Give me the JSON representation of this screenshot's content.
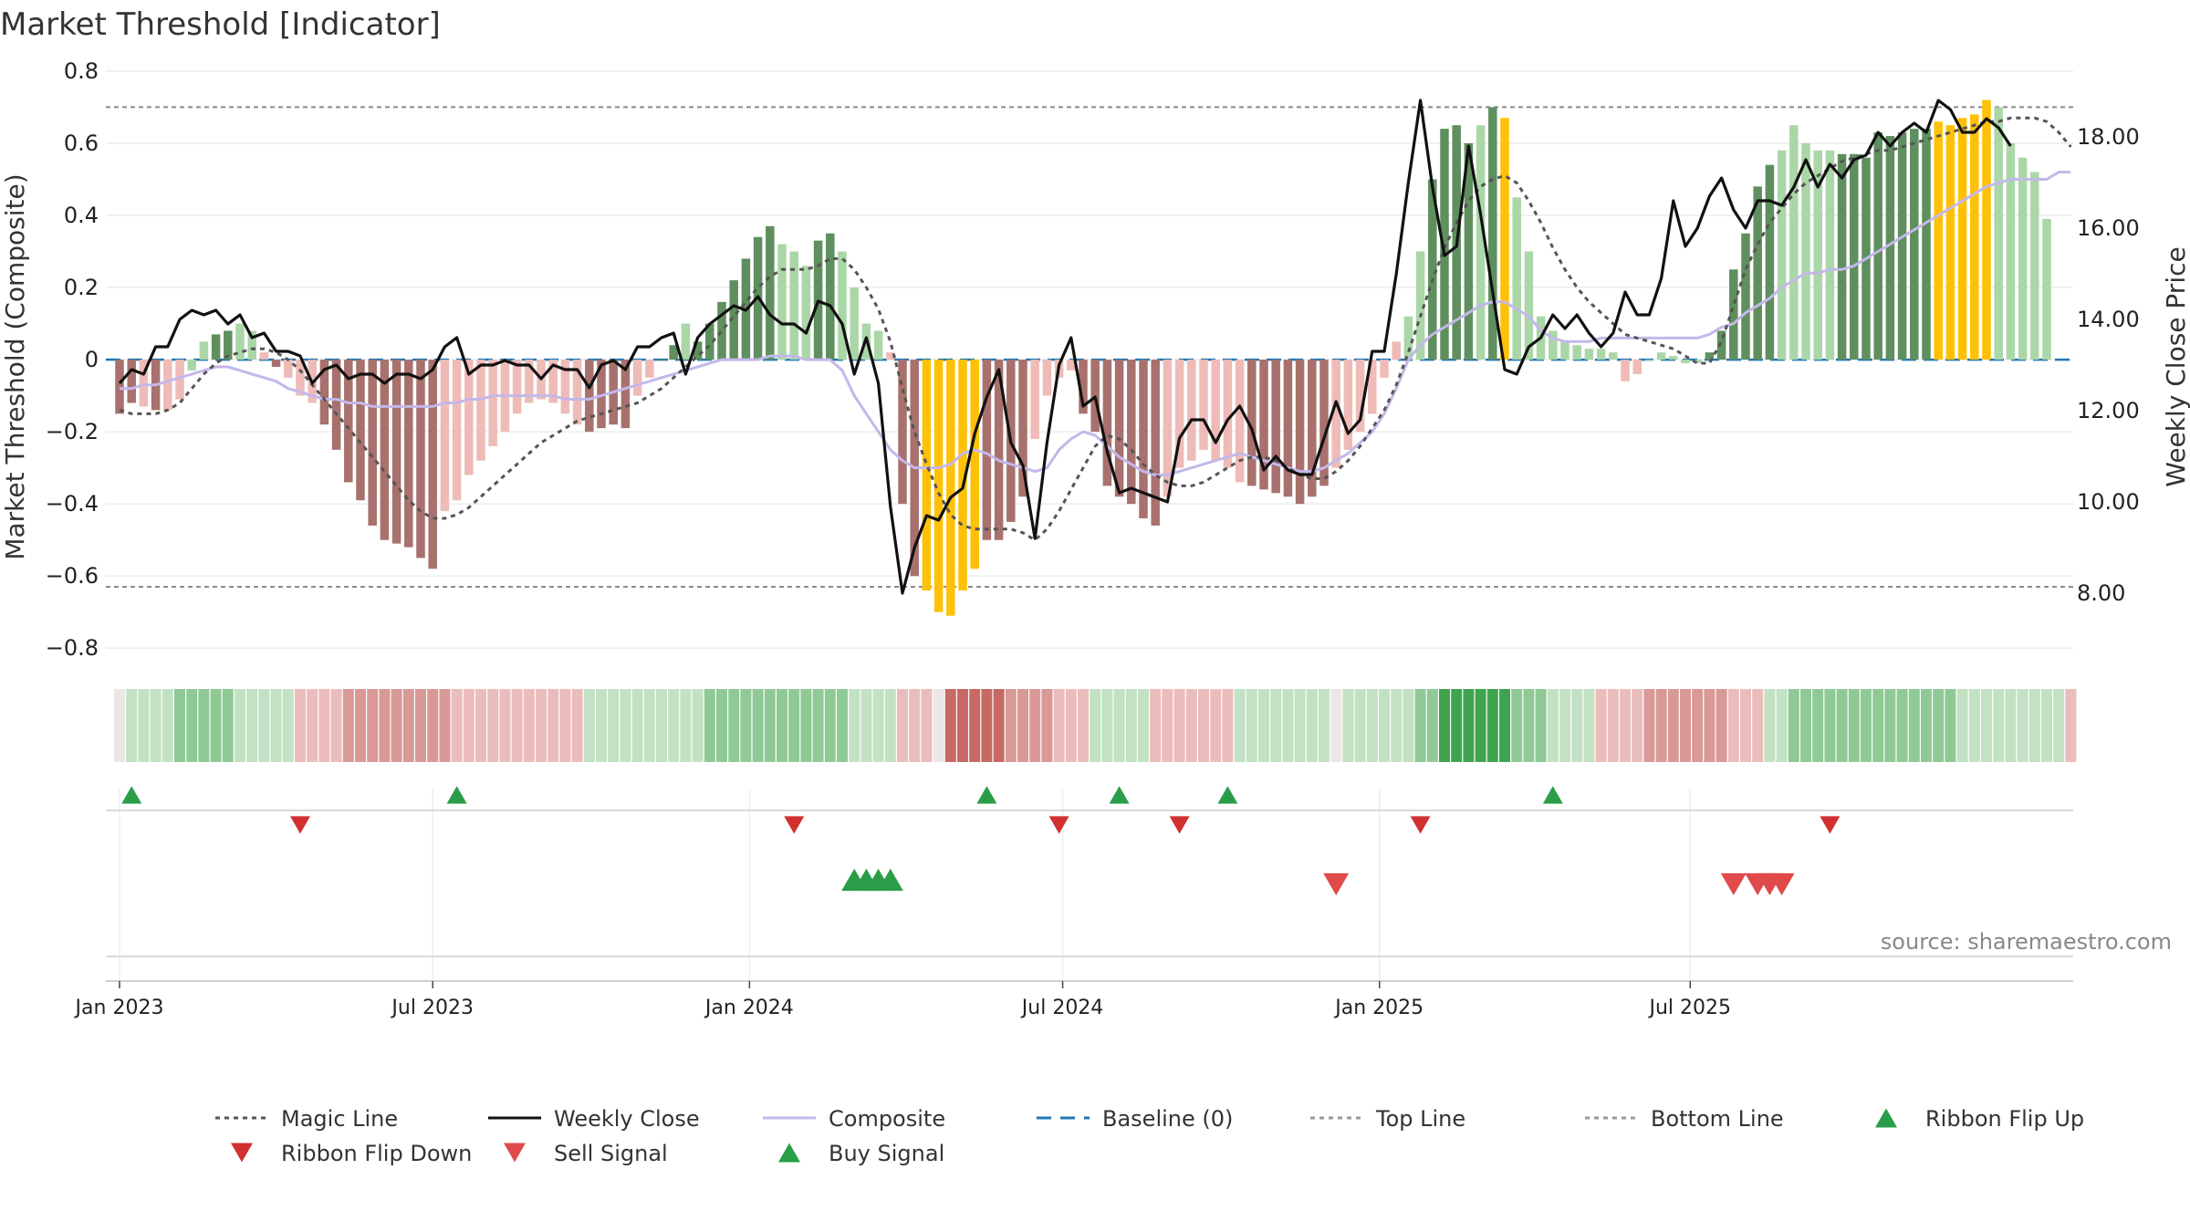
{
  "chart_data": {
    "type": "bar",
    "title": "Market Threshold [Indicator]",
    "ylabel": "Market Threshold (Composite)",
    "y2label": "Weekly Close Price",
    "ylim": [
      -0.85,
      0.82
    ],
    "y2lim": [
      6.4,
      19.6
    ],
    "yticks": [
      {
        "v": 0.8,
        "label": "0.8"
      },
      {
        "v": 0.6,
        "label": "0.6"
      },
      {
        "v": 0.4,
        "label": "0.4"
      },
      {
        "v": 0.2,
        "label": "0.2"
      },
      {
        "v": 0,
        "label": "0"
      },
      {
        "v": -0.2,
        "label": "−0.2"
      },
      {
        "v": -0.4,
        "label": "−0.4"
      },
      {
        "v": -0.6,
        "label": "−0.6"
      },
      {
        "v": -0.8,
        "label": "−0.8"
      }
    ],
    "y2ticks": [
      {
        "v": 18,
        "label": "18.00"
      },
      {
        "v": 16,
        "label": "16.00"
      },
      {
        "v": 14,
        "label": "14.00"
      },
      {
        "v": 12,
        "label": "12.00"
      },
      {
        "v": 10,
        "label": "10.00"
      },
      {
        "v": 8,
        "label": "8.00"
      }
    ],
    "xticks": [
      {
        "week": 0,
        "label": "Jan 2023"
      },
      {
        "week": 26,
        "label": "Jul 2023"
      },
      {
        "week": 52.3,
        "label": "Jan 2024"
      },
      {
        "week": 78.3,
        "label": "Jul 2024"
      },
      {
        "week": 104.6,
        "label": "Jan 2025"
      },
      {
        "week": 130.4,
        "label": "Jul 2025"
      }
    ],
    "top_line": 0.7,
    "bottom_line": -0.63,
    "baseline": 0,
    "composite": [
      -0.15,
      -0.12,
      -0.13,
      -0.14,
      -0.14,
      -0.11,
      -0.03,
      0.05,
      0.07,
      0.08,
      0.1,
      0.08,
      0.02,
      -0.02,
      -0.05,
      -0.1,
      -0.12,
      -0.18,
      -0.25,
      -0.34,
      -0.39,
      -0.46,
      -0.5,
      -0.51,
      -0.52,
      -0.55,
      -0.58,
      -0.42,
      -0.39,
      -0.32,
      -0.28,
      -0.24,
      -0.2,
      -0.15,
      -0.12,
      -0.11,
      -0.12,
      -0.15,
      -0.18,
      -0.2,
      -0.19,
      -0.18,
      -0.19,
      -0.1,
      -0.05,
      0,
      0.04,
      0.1,
      0.05,
      0.1,
      0.16,
      0.22,
      0.28,
      0.34,
      0.37,
      0.32,
      0.3,
      0.26,
      0.33,
      0.35,
      0.3,
      0.2,
      0.1,
      0.08,
      0.02,
      -0.4,
      -0.6,
      -0.64,
      -0.7,
      -0.71,
      -0.64,
      -0.58,
      -0.5,
      -0.5,
      -0.45,
      -0.38,
      -0.22,
      -0.1,
      -0.05,
      -0.03,
      -0.15,
      -0.2,
      -0.35,
      -0.38,
      -0.4,
      -0.44,
      -0.46,
      -0.38,
      -0.3,
      -0.28,
      -0.25,
      -0.28,
      -0.3,
      -0.34,
      -0.35,
      -0.36,
      -0.37,
      -0.38,
      -0.4,
      -0.38,
      -0.35,
      -0.3,
      -0.25,
      -0.2,
      -0.15,
      -0.05,
      0.05,
      0.12,
      0.3,
      0.5,
      0.64,
      0.65,
      0.6,
      0.65,
      0.7,
      0.67,
      0.45,
      0.3,
      0.12,
      0.08,
      0.05,
      0.04,
      0.03,
      0.03,
      0.02,
      -0.06,
      -0.04,
      0,
      0.02,
      0.01,
      -0.01,
      -0.01,
      0.02,
      0.08,
      0.25,
      0.35,
      0.48,
      0.54,
      0.58,
      0.65,
      0.6,
      0.58,
      0.58,
      0.57,
      0.57,
      0.56,
      0.63,
      0.62,
      0.63,
      0.64,
      0.64,
      0.66,
      0.65,
      0.67,
      0.68,
      0.72,
      0.7,
      0.6,
      0.56,
      0.52,
      0.39
    ],
    "bar_tone": [
      "dr",
      "dr",
      "lr",
      "dr",
      "lr",
      "lr",
      "lg",
      "lg",
      "dg",
      "dg",
      "lg",
      "lg",
      "lr",
      "dr",
      "lr",
      "lr",
      "lr",
      "dr",
      "dr",
      "dr",
      "dr",
      "dr",
      "dr",
      "dr",
      "dr",
      "dr",
      "dr",
      "lr",
      "lr",
      "lr",
      "lr",
      "lr",
      "lr",
      "lr",
      "lr",
      "lr",
      "lr",
      "lr",
      "lr",
      "dr",
      "dr",
      "dr",
      "dr",
      "lr",
      "lr",
      "dg",
      "dg",
      "lg",
      "dg",
      "dg",
      "dg",
      "dg",
      "dg",
      "dg",
      "dg",
      "lg",
      "lg",
      "lg",
      "dg",
      "dg",
      "lg",
      "lg",
      "lg",
      "lg",
      "lr",
      "dr",
      "dr",
      "gold",
      "gold",
      "gold",
      "gold",
      "gold",
      "dr",
      "dr",
      "dr",
      "dr",
      "lr",
      "lr",
      "lr",
      "lr",
      "dr",
      "dr",
      "dr",
      "dr",
      "dr",
      "dr",
      "dr",
      "lr",
      "lr",
      "lr",
      "lr",
      "lr",
      "lr",
      "lr",
      "dr",
      "dr",
      "dr",
      "dr",
      "dr",
      "dr",
      "dr",
      "lr",
      "lr",
      "lr",
      "lr",
      "lr",
      "lr",
      "lg",
      "lg",
      "dg",
      "dg",
      "dg",
      "dg",
      "lg",
      "dg",
      "gold",
      "lg",
      "lg",
      "lg",
      "lg",
      "lg",
      "lg",
      "lg",
      "lg",
      "lg",
      "lr",
      "lr",
      "lg",
      "lg",
      "lg",
      "lg",
      "lg",
      "dg",
      "dg",
      "dg",
      "dg",
      "dg",
      "dg",
      "lg",
      "lg",
      "lg",
      "lg",
      "lg",
      "dg",
      "dg",
      "dg",
      "dg",
      "dg",
      "dg",
      "dg",
      "dg",
      "gold",
      "gold",
      "gold",
      "gold",
      "gold",
      "lg",
      "lg",
      "lg",
      "lg"
    ],
    "composite_smoothed": [
      -0.08,
      -0.08,
      -0.07,
      -0.07,
      -0.06,
      -0.05,
      -0.04,
      -0.03,
      -0.02,
      -0.02,
      -0.03,
      -0.04,
      -0.05,
      -0.06,
      -0.08,
      -0.09,
      -0.1,
      -0.11,
      -0.11,
      -0.12,
      -0.12,
      -0.13,
      -0.13,
      -0.13,
      -0.13,
      -0.13,
      -0.13,
      -0.12,
      -0.12,
      -0.11,
      -0.11,
      -0.1,
      -0.1,
      -0.1,
      -0.1,
      -0.1,
      -0.1,
      -0.11,
      -0.11,
      -0.11,
      -0.1,
      -0.09,
      -0.08,
      -0.07,
      -0.06,
      -0.05,
      -0.04,
      -0.03,
      -0.02,
      -0.01,
      0,
      0,
      0,
      0,
      0.01,
      0.01,
      0.01,
      0,
      0,
      0,
      -0.03,
      -0.1,
      -0.15,
      -0.2,
      -0.25,
      -0.28,
      -0.3,
      -0.3,
      -0.3,
      -0.29,
      -0.26,
      -0.25,
      -0.26,
      -0.28,
      -0.29,
      -0.3,
      -0.31,
      -0.3,
      -0.25,
      -0.22,
      -0.2,
      -0.21,
      -0.24,
      -0.27,
      -0.29,
      -0.31,
      -0.32,
      -0.32,
      -0.31,
      -0.3,
      -0.29,
      -0.28,
      -0.27,
      -0.26,
      -0.27,
      -0.28,
      -0.29,
      -0.3,
      -0.31,
      -0.31,
      -0.3,
      -0.28,
      -0.26,
      -0.23,
      -0.2,
      -0.15,
      -0.08,
      0,
      0.04,
      0.07,
      0.09,
      0.11,
      0.13,
      0.15,
      0.16,
      0.16,
      0.14,
      0.12,
      0.08,
      0.06,
      0.05,
      0.05,
      0.05,
      0.06,
      0.06,
      0.06,
      0.06,
      0.06,
      0.06,
      0.06,
      0.06,
      0.06,
      0.07,
      0.09,
      0.1,
      0.13,
      0.15,
      0.17,
      0.2,
      0.22,
      0.24,
      0.24,
      0.25,
      0.25,
      0.26,
      0.28,
      0.3,
      0.32,
      0.34,
      0.36,
      0.38,
      0.4,
      0.42,
      0.44,
      0.46,
      0.48,
      0.49,
      0.5,
      0.5,
      0.5,
      0.5,
      0.52,
      0.52
    ],
    "magic_line": [
      -0.14,
      -0.15,
      -0.15,
      -0.15,
      -0.14,
      -0.12,
      -0.08,
      -0.04,
      -0.01,
      0.01,
      0.02,
      0.03,
      0.03,
      0.02,
      0,
      -0.03,
      -0.07,
      -0.11,
      -0.15,
      -0.19,
      -0.23,
      -0.27,
      -0.31,
      -0.35,
      -0.39,
      -0.42,
      -0.44,
      -0.44,
      -0.43,
      -0.41,
      -0.38,
      -0.35,
      -0.32,
      -0.29,
      -0.26,
      -0.23,
      -0.21,
      -0.19,
      -0.17,
      -0.16,
      -0.15,
      -0.14,
      -0.13,
      -0.12,
      -0.1,
      -0.08,
      -0.05,
      -0.02,
      0.01,
      0.04,
      0.08,
      0.12,
      0.16,
      0.2,
      0.23,
      0.25,
      0.25,
      0.25,
      0.26,
      0.28,
      0.28,
      0.25,
      0.2,
      0.14,
      0.05,
      -0.08,
      -0.2,
      -0.29,
      -0.37,
      -0.43,
      -0.46,
      -0.47,
      -0.47,
      -0.47,
      -0.47,
      -0.48,
      -0.5,
      -0.47,
      -0.42,
      -0.36,
      -0.3,
      -0.24,
      -0.21,
      -0.22,
      -0.25,
      -0.29,
      -0.32,
      -0.34,
      -0.35,
      -0.35,
      -0.34,
      -0.32,
      -0.3,
      -0.28,
      -0.27,
      -0.27,
      -0.28,
      -0.3,
      -0.32,
      -0.33,
      -0.33,
      -0.31,
      -0.28,
      -0.24,
      -0.19,
      -0.14,
      -0.07,
      0.02,
      0.12,
      0.22,
      0.31,
      0.38,
      0.44,
      0.48,
      0.5,
      0.51,
      0.49,
      0.44,
      0.38,
      0.31,
      0.25,
      0.2,
      0.16,
      0.13,
      0.1,
      0.07,
      0.06,
      0.05,
      0.04,
      0.03,
      0.01,
      -0.01,
      -0.01,
      0.05,
      0.15,
      0.25,
      0.32,
      0.38,
      0.42,
      0.46,
      0.49,
      0.51,
      0.53,
      0.55,
      0.56,
      0.57,
      0.58,
      0.58,
      0.59,
      0.6,
      0.61,
      0.62,
      0.63,
      0.64,
      0.65,
      0.66,
      0.66,
      0.67,
      0.67,
      0.67,
      0.66,
      0.63,
      0.59
    ],
    "weekly_close": [
      12.6,
      12.9,
      12.8,
      13.4,
      13.4,
      14,
      14.2,
      14.1,
      14.2,
      13.9,
      14.1,
      13.6,
      13.7,
      13.3,
      13.3,
      13.2,
      12.6,
      12.9,
      13.0,
      12.7,
      12.8,
      12.8,
      12.6,
      12.8,
      12.8,
      12.7,
      12.9,
      13.4,
      13.6,
      12.8,
      13,
      13.0,
      13.1,
      13.0,
      13,
      12.7,
      13.0,
      12.9,
      12.9,
      12.5,
      13,
      13.1,
      12.9,
      13.4,
      13.4,
      13.6,
      13.7,
      12.8,
      13.6,
      13.9,
      14.1,
      14.3,
      14.2,
      14.5,
      14.1,
      13.9,
      13.9,
      13.7,
      14.4,
      14.3,
      13.9,
      12.8,
      13.6,
      12.6,
      9.9,
      8.0,
      9.0,
      9.7,
      9.6,
      10.1,
      10.3,
      11.5,
      12.3,
      12.9,
      11.3,
      10.8,
      9.2,
      11.3,
      13.0,
      13.6,
      12.1,
      12.3,
      11.1,
      10.2,
      10.3,
      10.2,
      10.1,
      10.0,
      11.4,
      11.8,
      11.8,
      11.3,
      11.8,
      12.1,
      11.6,
      10.7,
      11.0,
      10.7,
      10.6,
      10.6,
      11.4,
      12.2,
      11.5,
      11.8,
      13.3,
      13.3,
      15.0,
      17.0,
      18.8,
      16.9,
      15.4,
      15.6,
      17.8,
      16.3,
      14.6,
      12.9,
      12.8,
      13.4,
      13.6,
      14.1,
      13.8,
      14.1,
      13.7,
      13.4,
      13.7,
      14.6,
      14.1,
      14.1,
      14.9,
      16.6,
      15.6,
      16.0,
      16.7,
      17.1,
      16.4,
      16.0,
      16.6,
      16.6,
      16.5,
      16.9,
      17.5,
      16.9,
      17.4,
      17.1,
      17.5,
      17.6,
      18.1,
      17.8,
      18.1,
      18.3,
      18.1,
      18.8,
      18.6,
      18.1,
      18.1,
      18.4,
      18.2,
      17.8
    ],
    "ribbon_tone": [
      "s",
      "l1",
      "l1",
      "l1",
      "l1",
      "l2",
      "l2",
      "l2",
      "l2",
      "l2",
      "l1",
      "l1",
      "l1",
      "l1",
      "l1",
      "r1",
      "r1",
      "r1",
      "r1",
      "r2",
      "r2",
      "r2",
      "r2",
      "r2",
      "r2",
      "r2",
      "r2",
      "r2",
      "r1",
      "r1",
      "r1",
      "r1",
      "r1",
      "r1",
      "r1",
      "r1",
      "r1",
      "r1",
      "r1",
      "l1",
      "l1",
      "l1",
      "l1",
      "l1",
      "l1",
      "l1",
      "l1",
      "l1",
      "l1",
      "l2",
      "l2",
      "l2",
      "l2",
      "l2",
      "l2",
      "l2",
      "l2",
      "l2",
      "l2",
      "l2",
      "l2",
      "l1",
      "l1",
      "l1",
      "l1",
      "r1",
      "r1",
      "r1",
      "s",
      "r3",
      "r3",
      "r3",
      "r3",
      "r3",
      "r2",
      "r2",
      "r2",
      "r2",
      "r1",
      "r1",
      "r1",
      "l1",
      "l1",
      "l1",
      "l1",
      "l1",
      "r1",
      "r1",
      "r1",
      "r1",
      "r1",
      "r1",
      "r1",
      "l1",
      "l1",
      "l1",
      "l1",
      "l1",
      "l1",
      "l1",
      "l1",
      "s",
      "l1",
      "l1",
      "l1",
      "l1",
      "l1",
      "l1",
      "l2",
      "l2",
      "l3",
      "l3",
      "l3",
      "l3",
      "l3",
      "l3",
      "l2",
      "l2",
      "l2",
      "l1",
      "l1",
      "l1",
      "l1",
      "r1",
      "r1",
      "r1",
      "r1",
      "r2",
      "r2",
      "r2",
      "r2",
      "r2",
      "r2",
      "r2",
      "r1",
      "r1",
      "r1",
      "l1",
      "l1",
      "l2",
      "l2",
      "l2",
      "l2",
      "l2",
      "l2",
      "l2",
      "l2",
      "l2",
      "l2",
      "l2",
      "l2",
      "l2",
      "l2",
      "l1",
      "l1",
      "l1",
      "l1",
      "l1",
      "l1",
      "l1",
      "l1",
      "l1",
      "r1"
    ],
    "ribbon_flip_up": [
      1,
      28,
      72,
      83,
      92,
      119
    ],
    "ribbon_flip_down": [
      15,
      56,
      78,
      88,
      108,
      142
    ],
    "buy_signals": [
      61,
      62,
      63,
      64
    ],
    "sell_signals": [
      101,
      134,
      136,
      137,
      138
    ],
    "source": "source: sharemaestro.com",
    "legend": [
      {
        "label": "Magic Line",
        "kind": "dotted",
        "color": "#555555"
      },
      {
        "label": "Weekly Close",
        "kind": "solid",
        "color": "#111111"
      },
      {
        "label": "Composite",
        "kind": "solid",
        "color": "#c3b8ea"
      },
      {
        "label": "Baseline (0)",
        "kind": "dashed",
        "color": "#1f77b4"
      },
      {
        "label": "Top Line",
        "kind": "dotted",
        "color": "#999999"
      },
      {
        "label": "Bottom Line",
        "kind": "dotted",
        "color": "#999999"
      },
      {
        "label": "Ribbon Flip Up",
        "kind": "tri-up",
        "color": "#2a9d48"
      },
      {
        "label": "Ribbon Flip Down",
        "kind": "tri-down",
        "color": "#d23030"
      },
      {
        "label": "Sell Signal",
        "kind": "tri-down",
        "color": "#e04a4a"
      },
      {
        "label": "Buy Signal",
        "kind": "tri-up",
        "color": "#2a9d48"
      }
    ],
    "colors": {
      "dark_green": "#5f8f5e",
      "light_green": "#abd6a7",
      "dark_red": "#a8716d",
      "light_red": "#eebbb7",
      "gold": "#ffc107",
      "ribbon": {
        "s": "#ede6e6",
        "l1": "#c2e2c3",
        "l2": "#8fc996",
        "l3": "#3fa34d",
        "r1": "#ebbcbc",
        "r2": "#d99996",
        "r3": "#c76a66"
      }
    }
  }
}
